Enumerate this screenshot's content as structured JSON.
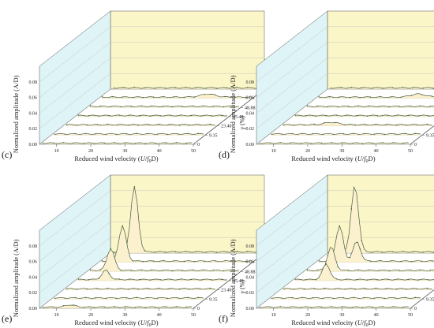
{
  "figure": {
    "xlabel_parts": [
      "Reduced wind velocity (",
      "U",
      "/",
      "f",
      "0",
      "D",
      ")"
    ],
    "ylabel": "Normalized amplitude (A/D)",
    "zlabel_parts": [
      "γ",
      " (%)"
    ]
  },
  "chart_data": [
    {
      "panel": "(c)",
      "type": "line",
      "xticks": [
        "10",
        "20",
        "30",
        "40",
        "50"
      ],
      "xlim": [
        5,
        50
      ],
      "yticks": [
        "0.00",
        "0.02",
        "0.04",
        "0.06",
        "0.08"
      ],
      "ylim": [
        0,
        0.1
      ],
      "series_ticks": [
        "0",
        "9.35",
        "23.40",
        "35.48",
        "48.88",
        "64.36",
        "100"
      ],
      "peaks": [
        {
          "series": "64.36",
          "x": 37,
          "y": 0.004,
          "w": 3
        }
      ]
    },
    {
      "panel": "(d)",
      "type": "line",
      "xticks": [
        "10",
        "20",
        "30",
        "40",
        "50"
      ],
      "xlim": [
        5,
        50
      ],
      "yticks": [
        "0.00",
        "0.02",
        "0.04",
        "0.06",
        "0.08"
      ],
      "ylim": [
        0,
        0.1
      ],
      "series_ticks": [
        "0",
        "9.35",
        "23.40",
        "35.48",
        "48.88",
        "60.37",
        "100"
      ],
      "peaks": [
        {
          "series": "60.37",
          "x": 35,
          "y": 0.004,
          "w": 3
        },
        {
          "series": "23.40",
          "x": 20,
          "y": 0.003,
          "w": 3
        }
      ]
    },
    {
      "panel": "(e)",
      "type": "line",
      "xticks": [
        "10",
        "20",
        "30",
        "40",
        "50"
      ],
      "xlim": [
        5,
        50
      ],
      "yticks": [
        "0.00",
        "0.02",
        "0.04",
        "0.06",
        "0.08"
      ],
      "ylim": [
        0,
        0.1
      ],
      "series_ticks": [
        "0",
        "9.35",
        "23.40",
        "35.48",
        "48.88",
        "64.36",
        "100"
      ],
      "peaks": [
        {
          "series": "35.48",
          "x": 14,
          "y": 0.012,
          "w": 1.5
        },
        {
          "series": "48.88",
          "x": 12,
          "y": 0.028,
          "w": 1.5
        },
        {
          "series": "64.36",
          "x": 12,
          "y": 0.045,
          "w": 1.5
        },
        {
          "series": "100",
          "x": 12,
          "y": 0.083,
          "w": 1.5
        },
        {
          "series": "0",
          "x": 14,
          "y": 0.003,
          "w": 2
        }
      ]
    },
    {
      "panel": "(f)",
      "type": "line",
      "xticks": [
        "10",
        "20",
        "30",
        "40",
        "50"
      ],
      "xlim": [
        5,
        50
      ],
      "yticks": [
        "0.00",
        "0.02",
        "0.04",
        "0.06",
        "0.08"
      ],
      "ylim": [
        0,
        0.1
      ],
      "series_ticks": [
        "0",
        "9.35",
        "23.40",
        "35.48",
        "48.88",
        "60.37",
        "100"
      ],
      "peaks": [
        {
          "series": "35.48",
          "x": 15,
          "y": 0.02,
          "w": 1.5
        },
        {
          "series": "48.88",
          "x": 13,
          "y": 0.03,
          "w": 1.5
        },
        {
          "series": "60.37",
          "x": 12,
          "y": 0.045,
          "w": 1.5
        },
        {
          "series": "60.37",
          "x": 17,
          "y": 0.025,
          "w": 1.5
        },
        {
          "series": "100",
          "x": 13,
          "y": 0.085,
          "w": 1.5
        }
      ]
    }
  ],
  "colors": {
    "back_wall": "#fbf6c8",
    "side_wall": "#dff4f6",
    "floor": "#ffffff",
    "ribbon": "#fcf1cf",
    "line": "#4b5d3e",
    "marker": "#3b5f33",
    "axis": "#555555",
    "grid": "#b9b9b9"
  }
}
